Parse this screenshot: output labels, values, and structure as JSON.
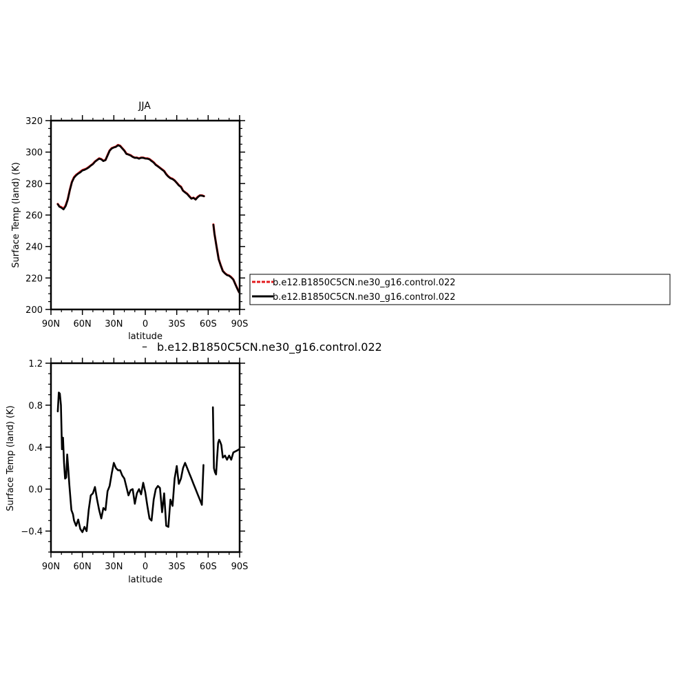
{
  "chart_data": [
    {
      "type": "line",
      "title": "JJA",
      "xlabel": "latitude",
      "ylabel": "Surface Temp (land) (K)",
      "xlim": [
        90,
        -90
      ],
      "ylim": [
        200,
        320
      ],
      "x_ticks": [
        90,
        60,
        30,
        0,
        -30,
        -60,
        -90
      ],
      "x_tick_labels": [
        "90N",
        "60N",
        "30N",
        "0",
        "30S",
        "60S",
        "90S"
      ],
      "y_ticks": [
        200,
        220,
        240,
        260,
        280,
        300,
        320
      ],
      "y_tick_labels": [
        "200",
        "220",
        "240",
        "260",
        "280",
        "300",
        "320"
      ],
      "legend": {
        "placement": "right of plot",
        "entries": [
          {
            "label": "b.e12.B1850C5CN.ne30_g16.control.022",
            "color": "#e31a1c",
            "style": "dashed"
          },
          {
            "label": "b.e12.B1850C5CN.ne30_g16.control.022",
            "color": "#000000",
            "style": "solid"
          }
        ]
      },
      "series": [
        {
          "name": "b.e12.B1850C5CN.ne30_g16.control.022",
          "color": "#e31a1c",
          "segments": [
            {
              "x": [
                83.5,
                82,
                80,
                78,
                76,
                74,
                72,
                70,
                68,
                66,
                64,
                62,
                60,
                58,
                56,
                54,
                52,
                50,
                48,
                46,
                44,
                42,
                40,
                38,
                36,
                34,
                32,
                30,
                28,
                26,
                24,
                22,
                20,
                18,
                16,
                14,
                12,
                10,
                8,
                6,
                4,
                2,
                0,
                -2,
                -4,
                -6,
                -8,
                -10,
                -12,
                -14,
                -16,
                -18,
                -20,
                -22,
                -24,
                -26,
                -28,
                -30,
                -32,
                -34,
                -36,
                -38,
                -40,
                -42,
                -44,
                -46,
                -48,
                -50,
                -52,
                -54,
                -56
              ],
              "y": [
                267,
                265.5,
                265,
                264,
                266,
                270,
                276,
                281,
                284,
                285.5,
                286.5,
                287.5,
                288.5,
                289,
                289.5,
                290.5,
                291.5,
                292.5,
                294,
                295,
                296,
                295.5,
                294.5,
                295,
                298,
                301,
                302.5,
                303,
                303.5,
                304.5,
                304,
                302.5,
                301,
                299,
                298.5,
                298,
                297,
                296.5,
                296.5,
                296,
                296.5,
                296.5,
                296,
                296,
                295.5,
                294.5,
                293.5,
                292,
                291,
                290,
                289,
                288,
                286,
                284.5,
                283.5,
                283,
                282,
                280.5,
                279,
                278,
                275.5,
                274.5,
                273.5,
                272,
                270.5,
                271,
                270,
                271.5,
                272.5,
                272.5,
                272
              ]
            },
            {
              "x": [
                -65,
                -66,
                -68,
                -70,
                -72,
                -74,
                -76,
                -78,
                -80,
                -82,
                -84,
                -86,
                -88,
                -89.5
              ],
              "y": [
                254,
                248,
                240,
                232,
                228,
                224.5,
                223,
                222,
                221.5,
                220.5,
                219,
                216,
                213,
                211
              ]
            }
          ]
        },
        {
          "name": "b.e12.B1850C5CN.ne30_g16.control.022",
          "color": "#000000",
          "segments": [
            {
              "x": [
                83.5,
                82,
                80,
                78,
                76,
                74,
                72,
                70,
                68,
                66,
                64,
                62,
                60,
                58,
                56,
                54,
                52,
                50,
                48,
                46,
                44,
                42,
                40,
                38,
                36,
                34,
                32,
                30,
                28,
                26,
                24,
                22,
                20,
                18,
                16,
                14,
                12,
                10,
                8,
                6,
                4,
                2,
                0,
                -2,
                -4,
                -6,
                -8,
                -10,
                -12,
                -14,
                -16,
                -18,
                -20,
                -22,
                -24,
                -26,
                -28,
                -30,
                -32,
                -34,
                -36,
                -38,
                -40,
                -42,
                -44,
                -46,
                -48,
                -50,
                -52,
                -54,
                -56
              ],
              "y": [
                266.9,
                265.3,
                264.6,
                263.6,
                265.6,
                269.8,
                275.8,
                280.8,
                283.7,
                285.2,
                286.3,
                287.1,
                288.3,
                288.7,
                289.4,
                290.2,
                291.4,
                292.3,
                293.8,
                294.9,
                295.8,
                295.4,
                294.3,
                294.9,
                297.8,
                300.8,
                302.3,
                302.9,
                303.3,
                304.3,
                303.8,
                302.3,
                300.8,
                298.8,
                298.4,
                297.8,
                296.9,
                296.3,
                296.4,
                295.8,
                296.4,
                296.3,
                295.9,
                295.8,
                295.4,
                294.3,
                293.3,
                291.8,
                290.9,
                289.9,
                288.8,
                287.8,
                285.8,
                284.4,
                283.3,
                282.8,
                281.9,
                280.4,
                278.8,
                277.8,
                275.4,
                274.3,
                273.3,
                271.8,
                270.4,
                270.9,
                269.8,
                271.3,
                272.4,
                272.3,
                271.9
              ]
            },
            {
              "x": [
                -65,
                -66,
                -68,
                -70,
                -72,
                -74,
                -76,
                -78,
                -80,
                -82,
                -84,
                -86,
                -88,
                -89.5
              ],
              "y": [
                253.8,
                247.9,
                239.8,
                231.8,
                227.9,
                224.3,
                222.9,
                221.8,
                221.4,
                220.3,
                218.9,
                215.8,
                212.8,
                210.9
              ]
            }
          ]
        }
      ]
    },
    {
      "type": "line",
      "title": "b.e12.B1850C5CN.ne30_g16.control.022",
      "legend_marker": "–",
      "xlabel": "latitude",
      "ylabel": "Surface Temp (land) (K)",
      "xlim": [
        90,
        -90
      ],
      "ylim": [
        -0.6,
        1.2
      ],
      "x_ticks": [
        90,
        60,
        30,
        0,
        -30,
        -60,
        -90
      ],
      "x_tick_labels": [
        "90N",
        "60N",
        "30N",
        "0",
        "30S",
        "60S",
        "90S"
      ],
      "y_ticks": [
        -0.4,
        0.0,
        0.4,
        0.8,
        1.2
      ],
      "y_tick_labels": [
        "−0.4",
        "0.0",
        "0.4",
        "0.8",
        "1.2"
      ],
      "series": [
        {
          "name": "b.e12.B1850C5CN.ne30_g16.control.022",
          "color": "#000000",
          "segments": [
            {
              "x": [
                83.5,
                82.5,
                81.5,
                80.5,
                79.5,
                78.5,
                77.5,
                76.5,
                75.5,
                74.5,
                73.5,
                72.5,
                71.5,
                70.5,
                69,
                68,
                66,
                64,
                62,
                60,
                58,
                56,
                54,
                52,
                50,
                48,
                46,
                44,
                42,
                40,
                38,
                36,
                34,
                32,
                30,
                28,
                26,
                24,
                22,
                20,
                18,
                16,
                14,
                12,
                10,
                8,
                6,
                4,
                2,
                0,
                -2,
                -4,
                -6,
                -8,
                -10,
                -12,
                -14,
                -16,
                -18,
                -20,
                -22,
                -24,
                -26,
                -28,
                -30,
                -32,
                -34,
                -36,
                -38,
                -40,
                -42,
                -44,
                -46,
                -48,
                -50,
                -52,
                -54,
                -55.5
              ],
              "y": [
                0.74,
                0.92,
                0.91,
                0.8,
                0.38,
                0.49,
                0.25,
                0.1,
                0.11,
                0.33,
                0.2,
                0.05,
                -0.08,
                -0.2,
                -0.24,
                -0.3,
                -0.35,
                -0.29,
                -0.38,
                -0.41,
                -0.36,
                -0.4,
                -0.2,
                -0.06,
                -0.04,
                0.02,
                -0.1,
                -0.2,
                -0.28,
                -0.18,
                -0.2,
                -0.02,
                0.03,
                0.15,
                0.25,
                0.2,
                0.18,
                0.18,
                0.13,
                0.1,
                0.02,
                -0.06,
                -0.01,
                0.0,
                -0.14,
                -0.04,
                0.0,
                -0.05,
                0.06,
                -0.03,
                -0.16,
                -0.28,
                -0.3,
                -0.1,
                0.0,
                0.03,
                0.01,
                -0.22,
                -0.04,
                -0.35,
                -0.36,
                -0.1,
                -0.16,
                0.1,
                0.22,
                0.05,
                0.1,
                0.2,
                0.25,
                0.2,
                0.15,
                0.1,
                0.05,
                0.0,
                -0.05,
                -0.1,
                -0.15,
                0.23
              ]
            },
            {
              "x": [
                -64.5,
                -65.5,
                -66.5,
                -67.5,
                -68.5,
                -69.5,
                -70.5,
                -71.5,
                -72.5,
                -74,
                -76,
                -78,
                -80,
                -82,
                -84,
                -86,
                -88,
                -89.5
              ],
              "y": [
                0.78,
                0.2,
                0.16,
                0.14,
                0.3,
                0.44,
                0.47,
                0.45,
                0.42,
                0.3,
                0.32,
                0.28,
                0.32,
                0.28,
                0.35,
                0.36,
                0.37,
                0.38
              ]
            }
          ]
        }
      ]
    }
  ]
}
